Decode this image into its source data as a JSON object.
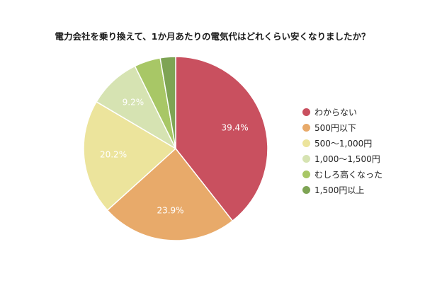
{
  "chart_data": {
    "type": "pie",
    "title": "電力会社を乗り換えて、1か月あたりの電気代はどれくらい安くなりましたか？",
    "legend_position": "right",
    "categories": [
      "わからない",
      "500円以下",
      "500〜1,000円",
      "1,000〜1,500円",
      "むしろ高くなった",
      "1,500円以上"
    ],
    "values": [
      39.4,
      23.9,
      20.2,
      9.2,
      4.6,
      2.7
    ],
    "data_labels": [
      "39.4%",
      "23.9%",
      "20.2%",
      "9.2%",
      "",
      ""
    ],
    "colors": [
      "#c9505f",
      "#e8aa6a",
      "#ece49c",
      "#d6e3b2",
      "#a8c766",
      "#7ea454"
    ]
  }
}
